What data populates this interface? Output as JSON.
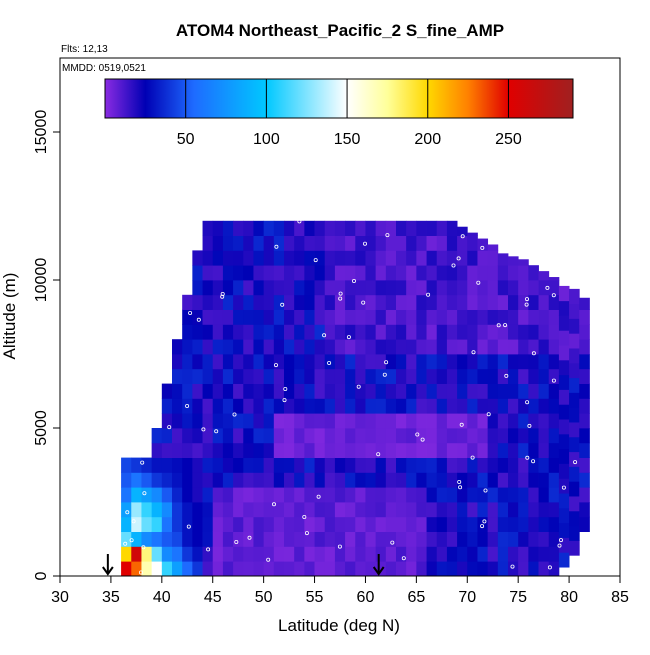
{
  "chart_data": {
    "type": "heatmap",
    "title": "ATOM4 Northeast_Pacific_2 S_fine_AMP",
    "flights_label": "Flts: 12,13",
    "dates_label": "MMDD: 0519,0521",
    "xlabel": "Latitude (deg N)",
    "ylabel": "Altitude (m)",
    "xlim": [
      30,
      85
    ],
    "ylim": [
      0,
      17500
    ],
    "xticks": [
      30,
      35,
      40,
      45,
      50,
      55,
      60,
      65,
      70,
      75,
      80,
      85
    ],
    "yticks": [
      0,
      5000,
      10000,
      15000
    ],
    "colorbar": {
      "range": [
        0,
        290
      ],
      "ticks": [
        50,
        100,
        150,
        200,
        250
      ],
      "stops": [
        {
          "v": 0,
          "c": "#8a2be2"
        },
        {
          "v": 25,
          "c": "#0000b4"
        },
        {
          "v": 55,
          "c": "#1e6bff"
        },
        {
          "v": 100,
          "c": "#00c8ff"
        },
        {
          "v": 150,
          "c": "#ffffff"
        },
        {
          "v": 175,
          "c": "#ffff9a"
        },
        {
          "v": 200,
          "c": "#ffd800"
        },
        {
          "v": 225,
          "c": "#ff8000"
        },
        {
          "v": 250,
          "c": "#e00000"
        },
        {
          "v": 290,
          "c": "#a02020"
        }
      ]
    },
    "grid": false,
    "arrows_at_latitude": [
      34.7,
      61.3
    ],
    "curtain": {
      "lat_step": 1,
      "alt_step": 500,
      "lat_start": 34,
      "profile_top_m": [
        0,
        0,
        4000,
        4000,
        4000,
        5000,
        6500,
        8000,
        9500,
        11000,
        12000,
        12000,
        12000,
        12000,
        12000,
        12000,
        12000,
        12000,
        12000,
        12000,
        12000,
        12000,
        12000,
        12000,
        12000,
        12000,
        12000,
        12000,
        12000,
        12000,
        12000,
        12000,
        12000,
        12000,
        12000,
        11800,
        11600,
        11400,
        11200,
        10900,
        10800,
        10700,
        10500,
        10300,
        10100,
        9800,
        9700,
        9400
      ],
      "profile_bottom_m": [
        0,
        0,
        0,
        0,
        0,
        0,
        0,
        0,
        0,
        0,
        0,
        0,
        0,
        0,
        0,
        0,
        0,
        0,
        0,
        0,
        0,
        0,
        0,
        0,
        0,
        0,
        0,
        0,
        0,
        0,
        0,
        0,
        0,
        0,
        0,
        0,
        0,
        0,
        0,
        0,
        0,
        0,
        0,
        0,
        0,
        300,
        700,
        1500
      ],
      "boundary_layer": [
        {
          "alt": 250,
          "values": [
            0,
            0,
            250,
            230,
            170,
            150,
            110,
            80,
            55,
            40
          ]
        },
        {
          "alt": 750,
          "values": [
            0,
            0,
            200,
            260,
            180,
            120,
            70,
            60,
            40,
            30
          ]
        },
        {
          "alt": 1250,
          "values": [
            0,
            0,
            120,
            90,
            70,
            60,
            50,
            45,
            30,
            25
          ]
        },
        {
          "alt": 1750,
          "values": [
            0,
            0,
            90,
            140,
            120,
            110,
            60,
            40,
            30,
            25
          ]
        },
        {
          "alt": 2250,
          "values": [
            0,
            0,
            80,
            130,
            110,
            90,
            70,
            40,
            30,
            25
          ]
        },
        {
          "alt": 2750,
          "values": [
            0,
            0,
            60,
            90,
            80,
            70,
            50,
            35,
            25,
            20
          ]
        },
        {
          "alt": 3250,
          "values": [
            0,
            0,
            50,
            60,
            50,
            40,
            35,
            30,
            25,
            20
          ]
        },
        {
          "alt": 3750,
          "values": [
            0,
            0,
            45,
            40,
            35,
            30,
            30,
            28,
            25,
            20
          ]
        }
      ],
      "background_value": 12
    },
    "sample_points_note": "white circles mark measurement locations"
  }
}
